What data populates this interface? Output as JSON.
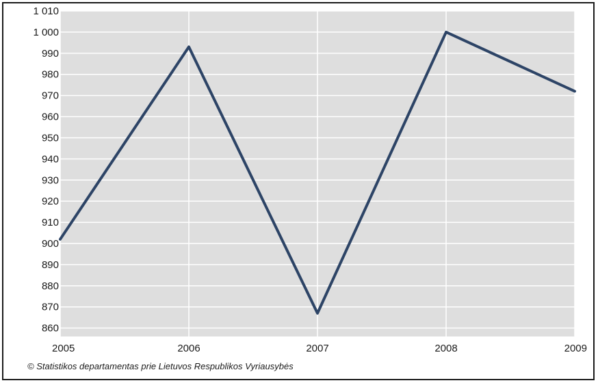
{
  "chart_data": {
    "type": "line",
    "title": "",
    "xlabel": "",
    "ylabel": "",
    "categories": [
      "2005",
      "2006",
      "2007",
      "2008",
      "2009"
    ],
    "series": [
      {
        "values": [
          902,
          993,
          867,
          1000,
          972
        ]
      }
    ],
    "ylim": [
      856,
      1010
    ],
    "yticks": [
      860,
      870,
      880,
      890,
      900,
      910,
      920,
      930,
      940,
      950,
      960,
      970,
      980,
      990,
      1000,
      1010
    ],
    "ytick_labels": [
      "860",
      "870",
      "880",
      "890",
      "900",
      "910",
      "920",
      "930",
      "940",
      "950",
      "960",
      "970",
      "980",
      "990",
      "1 000",
      "1 010"
    ],
    "grid": true,
    "legend": "none",
    "colors": {
      "line": "#2d4466",
      "plot_bg": "#dedede",
      "grid": "#ffffff"
    }
  },
  "footer": {
    "credit": "© Statistikos departamentas prie Lietuvos Respublikos Vyriausybės"
  }
}
